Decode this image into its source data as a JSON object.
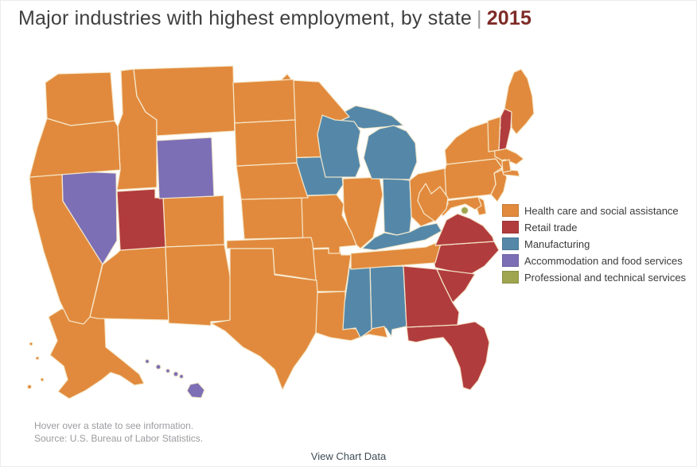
{
  "title": {
    "text": "Major industries with highest employment, by state",
    "separator": "|",
    "year": "2015"
  },
  "footer": {
    "hint": "Hover over a state to see information.",
    "source": "Source: U.S. Bureau of Labor Statistics."
  },
  "link": {
    "view_chart_data": "View Chart Data"
  },
  "chart_data": {
    "type": "choropleth",
    "region": "United States (50 states + District of Columbia)",
    "title": "Major industries with highest employment, by state",
    "year": "2015",
    "legend_position": "right",
    "background": "#ffffff",
    "border_color": "#f7ecd2",
    "categories": [
      {
        "label": "Health care and social assistance",
        "color": "#E18A3D"
      },
      {
        "label": "Retail trade",
        "color": "#B13C3D"
      },
      {
        "label": "Manufacturing",
        "color": "#5588A8"
      },
      {
        "label": "Accommodation and food services",
        "color": "#7C6FB5"
      },
      {
        "label": "Professional and technical services",
        "color": "#9FA44F"
      }
    ],
    "states": [
      {
        "abbr": "AL",
        "name": "Alabama",
        "industry": "Manufacturing"
      },
      {
        "abbr": "AK",
        "name": "Alaska",
        "industry": "Health care and social assistance"
      },
      {
        "abbr": "AZ",
        "name": "Arizona",
        "industry": "Health care and social assistance"
      },
      {
        "abbr": "AR",
        "name": "Arkansas",
        "industry": "Health care and social assistance"
      },
      {
        "abbr": "CA",
        "name": "California",
        "industry": "Health care and social assistance"
      },
      {
        "abbr": "CO",
        "name": "Colorado",
        "industry": "Health care and social assistance"
      },
      {
        "abbr": "CT",
        "name": "Connecticut",
        "industry": "Health care and social assistance"
      },
      {
        "abbr": "DE",
        "name": "Delaware",
        "industry": "Health care and social assistance"
      },
      {
        "abbr": "DC",
        "name": "District of Columbia",
        "industry": "Professional and technical services"
      },
      {
        "abbr": "FL",
        "name": "Florida",
        "industry": "Retail trade"
      },
      {
        "abbr": "GA",
        "name": "Georgia",
        "industry": "Retail trade"
      },
      {
        "abbr": "HI",
        "name": "Hawaii",
        "industry": "Accommodation and food services"
      },
      {
        "abbr": "ID",
        "name": "Idaho",
        "industry": "Health care and social assistance"
      },
      {
        "abbr": "IL",
        "name": "Illinois",
        "industry": "Health care and social assistance"
      },
      {
        "abbr": "IN",
        "name": "Indiana",
        "industry": "Manufacturing"
      },
      {
        "abbr": "IA",
        "name": "Iowa",
        "industry": "Manufacturing"
      },
      {
        "abbr": "KS",
        "name": "Kansas",
        "industry": "Health care and social assistance"
      },
      {
        "abbr": "KY",
        "name": "Kentucky",
        "industry": "Manufacturing"
      },
      {
        "abbr": "LA",
        "name": "Louisiana",
        "industry": "Health care and social assistance"
      },
      {
        "abbr": "ME",
        "name": "Maine",
        "industry": "Health care and social assistance"
      },
      {
        "abbr": "MD",
        "name": "Maryland",
        "industry": "Health care and social assistance"
      },
      {
        "abbr": "MA",
        "name": "Massachusetts",
        "industry": "Health care and social assistance"
      },
      {
        "abbr": "MI",
        "name": "Michigan",
        "industry": "Manufacturing"
      },
      {
        "abbr": "MN",
        "name": "Minnesota",
        "industry": "Health care and social assistance"
      },
      {
        "abbr": "MS",
        "name": "Mississippi",
        "industry": "Manufacturing"
      },
      {
        "abbr": "MO",
        "name": "Missouri",
        "industry": "Health care and social assistance"
      },
      {
        "abbr": "MT",
        "name": "Montana",
        "industry": "Health care and social assistance"
      },
      {
        "abbr": "NE",
        "name": "Nebraska",
        "industry": "Health care and social assistance"
      },
      {
        "abbr": "NV",
        "name": "Nevada",
        "industry": "Accommodation and food services"
      },
      {
        "abbr": "NH",
        "name": "New Hampshire",
        "industry": "Retail trade"
      },
      {
        "abbr": "NJ",
        "name": "New Jersey",
        "industry": "Health care and social assistance"
      },
      {
        "abbr": "NM",
        "name": "New Mexico",
        "industry": "Health care and social assistance"
      },
      {
        "abbr": "NY",
        "name": "New York",
        "industry": "Health care and social assistance"
      },
      {
        "abbr": "NC",
        "name": "North Carolina",
        "industry": "Retail trade"
      },
      {
        "abbr": "ND",
        "name": "North Dakota",
        "industry": "Health care and social assistance"
      },
      {
        "abbr": "OH",
        "name": "Ohio",
        "industry": "Health care and social assistance"
      },
      {
        "abbr": "OK",
        "name": "Oklahoma",
        "industry": "Health care and social assistance"
      },
      {
        "abbr": "OR",
        "name": "Oregon",
        "industry": "Health care and social assistance"
      },
      {
        "abbr": "PA",
        "name": "Pennsylvania",
        "industry": "Health care and social assistance"
      },
      {
        "abbr": "RI",
        "name": "Rhode Island",
        "industry": "Health care and social assistance"
      },
      {
        "abbr": "SC",
        "name": "South Carolina",
        "industry": "Retail trade"
      },
      {
        "abbr": "SD",
        "name": "South Dakota",
        "industry": "Health care and social assistance"
      },
      {
        "abbr": "TN",
        "name": "Tennessee",
        "industry": "Health care and social assistance"
      },
      {
        "abbr": "TX",
        "name": "Texas",
        "industry": "Health care and social assistance"
      },
      {
        "abbr": "UT",
        "name": "Utah",
        "industry": "Retail trade"
      },
      {
        "abbr": "VT",
        "name": "Vermont",
        "industry": "Health care and social assistance"
      },
      {
        "abbr": "VA",
        "name": "Virginia",
        "industry": "Retail trade"
      },
      {
        "abbr": "WA",
        "name": "Washington",
        "industry": "Health care and social assistance"
      },
      {
        "abbr": "WV",
        "name": "West Virginia",
        "industry": "Health care and social assistance"
      },
      {
        "abbr": "WI",
        "name": "Wisconsin",
        "industry": "Manufacturing"
      },
      {
        "abbr": "WY",
        "name": "Wyoming",
        "industry": "Accommodation and food services"
      }
    ]
  }
}
